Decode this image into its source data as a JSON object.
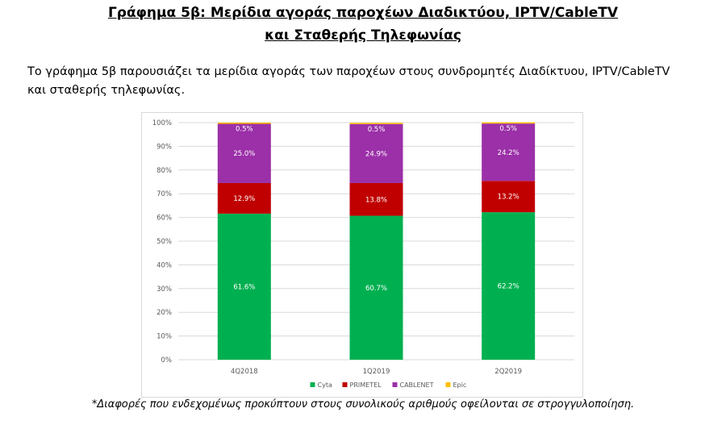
{
  "heading": {
    "line1": "Γράφημα 5β: Μερίδια αγοράς παροχέων Διαδικτύου, IPTV/CableTV",
    "line2": "και Σταθερής Τηλεφωνίας"
  },
  "intro": {
    "line1": "Το γράφημα 5β παρουσιάζει τα μερίδια αγοράς των παροχέων στους συνδρομητές Διαδίκτυου, IPTV/CableTV",
    "line2": "και σταθερής τηλεφωνίας."
  },
  "footnote": "*Διαφορές που ενδεχομένως προκύπτουν στους συνολικούς αριθμούς οφείλονται σε στρογγυλοποίηση.",
  "chart_data": {
    "type": "bar",
    "stacked": true,
    "percent": true,
    "categories": [
      "4Q2018",
      "1Q2019",
      "2Q2019"
    ],
    "series": [
      {
        "name": "Cyta",
        "color": "#00b050",
        "values": [
          61.6,
          60.7,
          62.2
        ],
        "labels": [
          "61.6%",
          "60.7%",
          "62.2%"
        ]
      },
      {
        "name": "PRIMETEL",
        "color": "#c00000",
        "values": [
          12.9,
          13.8,
          13.2
        ],
        "labels": [
          "12.9%",
          "13.8%",
          "13.2%"
        ]
      },
      {
        "name": "CABLENET",
        "color": "#9b30a8",
        "values": [
          25.0,
          24.9,
          24.2
        ],
        "labels": [
          "25.0%",
          "24.9%",
          "24.2%"
        ]
      },
      {
        "name": "Epic",
        "color": "#ffc000",
        "values": [
          0.5,
          0.5,
          0.5
        ],
        "labels": [
          "0.5%",
          "0.5%",
          "0.5%"
        ]
      }
    ],
    "y_ticks": [
      "0%",
      "10%",
      "20%",
      "30%",
      "40%",
      "50%",
      "60%",
      "70%",
      "80%",
      "90%",
      "100%"
    ],
    "ylim": [
      0,
      100
    ],
    "grid": true,
    "legend_position": "bottom",
    "title": "",
    "xlabel": "",
    "ylabel": ""
  }
}
